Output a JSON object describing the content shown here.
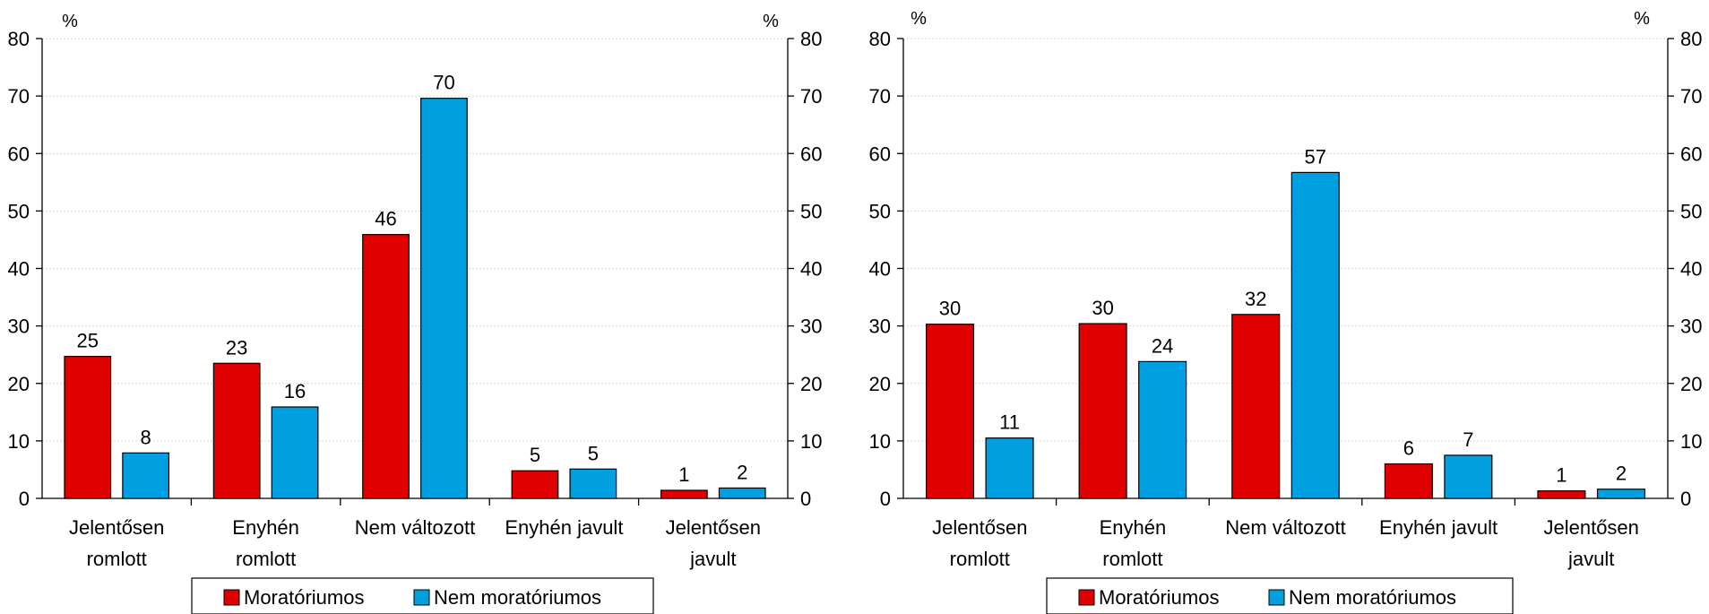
{
  "chart_data": [
    {
      "type": "bar",
      "unit_left": "%",
      "unit_right": "%",
      "categories": [
        [
          "Jelentősen",
          "romlott"
        ],
        [
          "Enyhén",
          "romlott"
        ],
        [
          "Nem változott"
        ],
        [
          "Enyhén javult"
        ],
        [
          "Jelentősen",
          "javult"
        ]
      ],
      "series": [
        {
          "name": "Moratóriumos",
          "color": "#e00000",
          "values": [
            24.7,
            23.5,
            45.9,
            4.8,
            1.4
          ]
        },
        {
          "name": "Nem moratóriumos",
          "color": "#00a0e0",
          "values": [
            7.9,
            15.9,
            69.6,
            5.1,
            1.8
          ]
        }
      ],
      "data_labels": [
        [
          "25",
          "23",
          "46",
          "5",
          "1"
        ],
        [
          "8",
          "16",
          "70",
          "5",
          "2"
        ]
      ],
      "ylim": [
        0,
        80
      ],
      "yticks": [
        "0",
        "10",
        "20",
        "30",
        "40",
        "50",
        "60",
        "70",
        "80"
      ],
      "grid": true,
      "legend_position": "bottom"
    },
    {
      "type": "bar",
      "unit_left": "%",
      "unit_right": "%",
      "categories": [
        [
          "Jelentősen",
          "romlott"
        ],
        [
          "Enyhén",
          "romlott"
        ],
        [
          "Nem változott"
        ],
        [
          "Enyhén javult"
        ],
        [
          "Jelentősen",
          "javult"
        ]
      ],
      "series": [
        {
          "name": "Moratóriumos",
          "color": "#e00000",
          "values": [
            30.3,
            30.4,
            32.0,
            6.0,
            1.3
          ]
        },
        {
          "name": "Nem moratóriumos",
          "color": "#00a0e0",
          "values": [
            10.5,
            23.8,
            56.7,
            7.5,
            1.6
          ]
        }
      ],
      "data_labels": [
        [
          "30",
          "30",
          "32",
          "6",
          "1"
        ],
        [
          "11",
          "24",
          "57",
          "7",
          "2"
        ]
      ],
      "ylim": [
        0,
        80
      ],
      "yticks": [
        "0",
        "10",
        "20",
        "30",
        "40",
        "50",
        "60",
        "70",
        "80"
      ],
      "grid": true,
      "legend_position": "bottom"
    }
  ]
}
